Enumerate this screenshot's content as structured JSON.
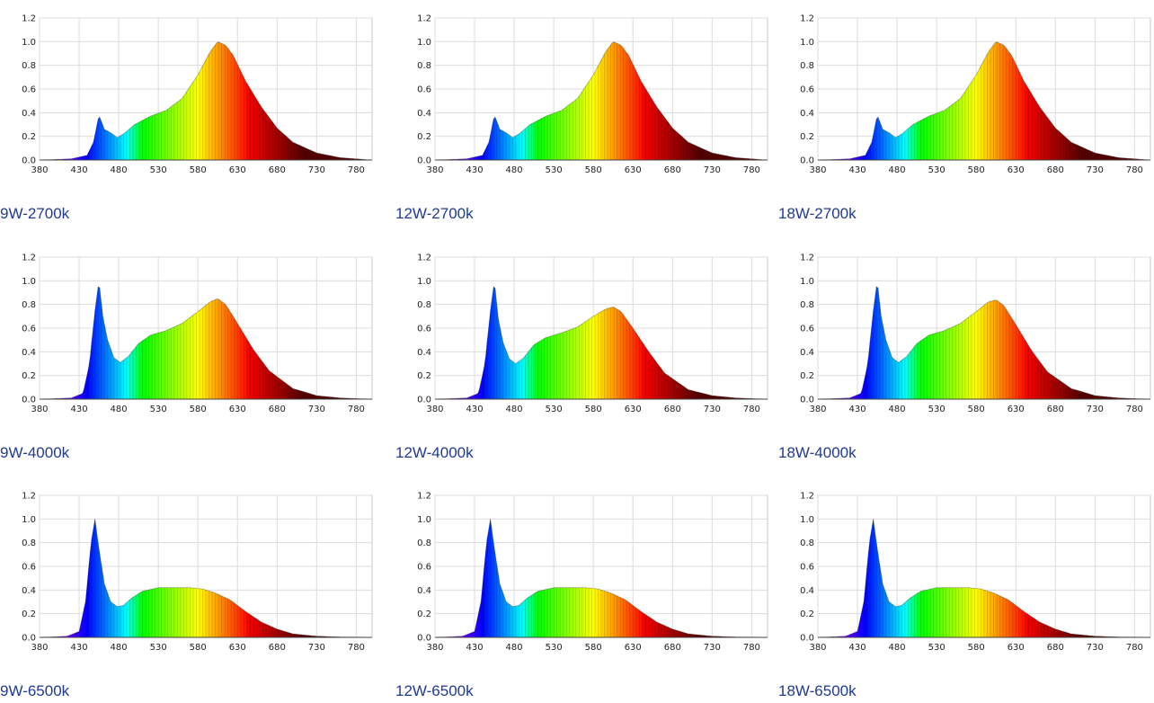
{
  "axis": {
    "x_ticks": [
      380,
      430,
      480,
      530,
      580,
      630,
      680,
      730,
      780
    ],
    "y_ticks": [
      0.0,
      0.2,
      0.4,
      0.6,
      0.8,
      1.0,
      1.2
    ],
    "x_tick_labels": [
      "380",
      "430",
      "480",
      "530",
      "580",
      "630",
      "680",
      "730",
      "780"
    ],
    "y_tick_labels": [
      "0.0",
      "0.2",
      "0.4",
      "0.6",
      "0.8",
      "1.0",
      "1.2"
    ]
  },
  "chart_data": [
    {
      "type": "area",
      "title": "9W-2700k",
      "xlim": [
        380,
        800
      ],
      "ylim": [
        0,
        1.2
      ],
      "x": [
        380,
        420,
        440,
        448,
        455,
        462,
        470,
        478,
        486,
        500,
        520,
        540,
        560,
        580,
        595,
        605,
        615,
        625,
        640,
        660,
        680,
        700,
        730,
        760,
        800
      ],
      "y": [
        0,
        0.01,
        0.04,
        0.15,
        0.38,
        0.26,
        0.23,
        0.19,
        0.22,
        0.3,
        0.37,
        0.42,
        0.52,
        0.72,
        0.91,
        1.0,
        0.97,
        0.88,
        0.67,
        0.45,
        0.27,
        0.15,
        0.06,
        0.02,
        0
      ]
    },
    {
      "type": "area",
      "title": "12W-2700k",
      "xlim": [
        380,
        800
      ],
      "ylim": [
        0,
        1.2
      ],
      "x": [
        380,
        420,
        440,
        448,
        455,
        462,
        470,
        478,
        486,
        500,
        520,
        540,
        560,
        580,
        595,
        605,
        615,
        625,
        640,
        660,
        680,
        700,
        730,
        760,
        800
      ],
      "y": [
        0,
        0.01,
        0.04,
        0.15,
        0.38,
        0.26,
        0.23,
        0.19,
        0.22,
        0.3,
        0.37,
        0.42,
        0.52,
        0.72,
        0.91,
        1.0,
        0.97,
        0.88,
        0.67,
        0.45,
        0.27,
        0.15,
        0.06,
        0.02,
        0
      ]
    },
    {
      "type": "area",
      "title": "18W-2700k",
      "xlim": [
        380,
        800
      ],
      "ylim": [
        0,
        1.2
      ],
      "x": [
        380,
        420,
        440,
        448,
        455,
        462,
        470,
        478,
        486,
        500,
        520,
        540,
        560,
        580,
        595,
        605,
        615,
        625,
        640,
        660,
        680,
        700,
        730,
        760,
        800
      ],
      "y": [
        0,
        0.01,
        0.04,
        0.15,
        0.38,
        0.26,
        0.23,
        0.19,
        0.22,
        0.3,
        0.37,
        0.42,
        0.52,
        0.72,
        0.91,
        1.0,
        0.97,
        0.88,
        0.67,
        0.45,
        0.27,
        0.15,
        0.06,
        0.02,
        0
      ]
    },
    {
      "type": "area",
      "title": "9W-4000k",
      "xlim": [
        380,
        800
      ],
      "ylim": [
        0,
        1.2
      ],
      "x": [
        380,
        420,
        435,
        443,
        450,
        455,
        460,
        466,
        474,
        482,
        492,
        505,
        520,
        540,
        560,
        580,
        595,
        605,
        615,
        630,
        650,
        670,
        700,
        730,
        760,
        800
      ],
      "y": [
        0,
        0.01,
        0.05,
        0.3,
        0.75,
        1.0,
        0.7,
        0.5,
        0.35,
        0.31,
        0.36,
        0.47,
        0.54,
        0.58,
        0.64,
        0.74,
        0.82,
        0.85,
        0.8,
        0.64,
        0.42,
        0.24,
        0.09,
        0.03,
        0.01,
        0
      ]
    },
    {
      "type": "area",
      "title": "12W-4000k",
      "xlim": [
        380,
        800
      ],
      "ylim": [
        0,
        1.2
      ],
      "x": [
        380,
        420,
        435,
        443,
        450,
        455,
        460,
        466,
        474,
        482,
        492,
        505,
        520,
        540,
        560,
        580,
        595,
        605,
        615,
        630,
        650,
        670,
        700,
        730,
        760,
        800
      ],
      "y": [
        0,
        0.01,
        0.05,
        0.3,
        0.75,
        1.0,
        0.68,
        0.48,
        0.34,
        0.3,
        0.35,
        0.46,
        0.52,
        0.56,
        0.61,
        0.7,
        0.76,
        0.78,
        0.74,
        0.6,
        0.4,
        0.22,
        0.08,
        0.03,
        0.01,
        0
      ]
    },
    {
      "type": "area",
      "title": "18W-4000k",
      "xlim": [
        380,
        800
      ],
      "ylim": [
        0,
        1.2
      ],
      "x": [
        380,
        420,
        435,
        443,
        450,
        455,
        460,
        466,
        474,
        482,
        492,
        505,
        520,
        540,
        560,
        580,
        595,
        605,
        615,
        630,
        650,
        670,
        700,
        730,
        760,
        800
      ],
      "y": [
        0,
        0.01,
        0.05,
        0.3,
        0.75,
        1.0,
        0.7,
        0.5,
        0.35,
        0.31,
        0.36,
        0.47,
        0.54,
        0.58,
        0.64,
        0.74,
        0.82,
        0.84,
        0.79,
        0.63,
        0.41,
        0.23,
        0.09,
        0.03,
        0.01,
        0
      ]
    },
    {
      "type": "area",
      "title": "9W-6500k",
      "xlim": [
        380,
        800
      ],
      "ylim": [
        0,
        1.2
      ],
      "x": [
        380,
        415,
        430,
        438,
        445,
        450,
        455,
        462,
        470,
        478,
        486,
        496,
        510,
        530,
        550,
        570,
        585,
        600,
        620,
        640,
        660,
        680,
        700,
        730,
        760,
        800
      ],
      "y": [
        0,
        0.01,
        0.05,
        0.3,
        0.8,
        1.0,
        0.75,
        0.45,
        0.3,
        0.26,
        0.27,
        0.33,
        0.39,
        0.42,
        0.42,
        0.42,
        0.41,
        0.38,
        0.32,
        0.22,
        0.13,
        0.07,
        0.03,
        0.01,
        0.004,
        0
      ]
    },
    {
      "type": "area",
      "title": "12W-6500k",
      "xlim": [
        380,
        800
      ],
      "ylim": [
        0,
        1.2
      ],
      "x": [
        380,
        415,
        430,
        438,
        445,
        450,
        455,
        462,
        470,
        478,
        486,
        496,
        510,
        530,
        550,
        570,
        585,
        600,
        620,
        640,
        660,
        680,
        700,
        730,
        760,
        800
      ],
      "y": [
        0,
        0.01,
        0.05,
        0.3,
        0.8,
        1.0,
        0.75,
        0.45,
        0.3,
        0.26,
        0.27,
        0.33,
        0.39,
        0.42,
        0.42,
        0.42,
        0.41,
        0.38,
        0.32,
        0.22,
        0.13,
        0.07,
        0.03,
        0.01,
        0.004,
        0
      ]
    },
    {
      "type": "area",
      "title": "18W-6500k",
      "xlim": [
        380,
        800
      ],
      "ylim": [
        0,
        1.2
      ],
      "x": [
        380,
        415,
        430,
        438,
        445,
        450,
        455,
        462,
        470,
        478,
        486,
        496,
        510,
        530,
        550,
        570,
        585,
        600,
        620,
        640,
        660,
        680,
        700,
        730,
        760,
        800
      ],
      "y": [
        0,
        0.01,
        0.05,
        0.3,
        0.8,
        1.0,
        0.75,
        0.45,
        0.3,
        0.26,
        0.27,
        0.33,
        0.39,
        0.42,
        0.42,
        0.42,
        0.41,
        0.38,
        0.32,
        0.22,
        0.13,
        0.07,
        0.03,
        0.01,
        0.004,
        0
      ]
    }
  ]
}
